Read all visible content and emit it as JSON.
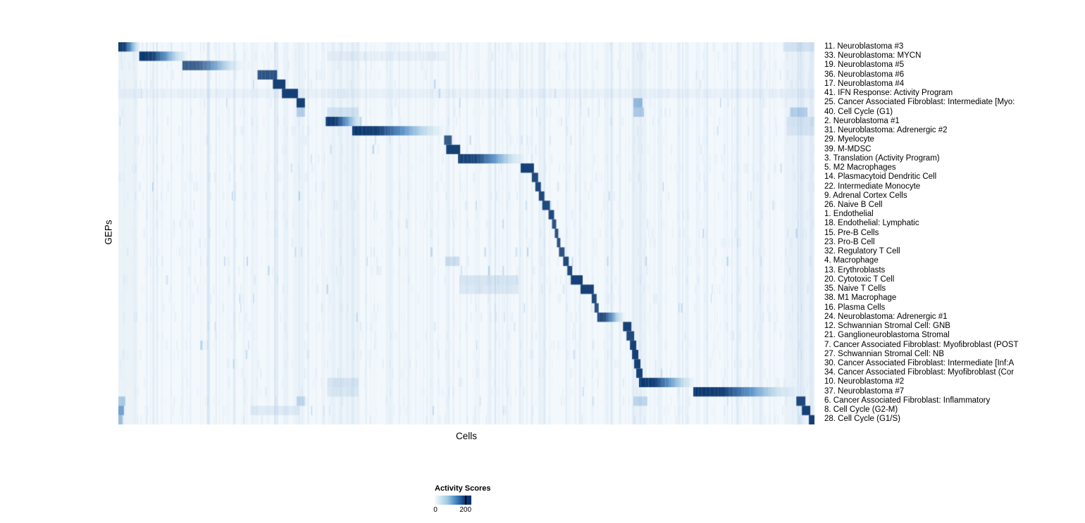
{
  "figure": {
    "background": "#ffffff"
  },
  "chart_data": {
    "type": "heatmap",
    "title": "",
    "xlabel": "Cells",
    "ylabel": "GEPs",
    "x_tick_labels_shown": false,
    "legend": {
      "title": "Activity Scores",
      "min_label": "0",
      "max_label": "200",
      "min": 0,
      "max": 200,
      "tick_fraction": 0.84,
      "position": "bottom"
    },
    "colors": {
      "page_background": "#ffffff",
      "cell_background": "#f3f8fc",
      "low": "#f7fbff",
      "midlight": "#9ecae1",
      "mid": "#3d7fbf",
      "high": "#09366f",
      "stripe": "#74a9d8",
      "text": "#000000"
    },
    "noise_seed": 42,
    "global_bands": [
      {
        "start": 0.74,
        "end": 0.753,
        "intensity": 0.06
      },
      {
        "start": 0.604,
        "end": 0.613,
        "intensity": 0.05
      },
      {
        "start": 0.47,
        "end": 0.476,
        "intensity": 0.04
      },
      {
        "start": 0.957,
        "end": 1.0,
        "intensity": 0.05
      },
      {
        "start": 0.0,
        "end": 0.028,
        "intensity": 0.04
      },
      {
        "start": 0.3,
        "end": 0.344,
        "intensity": 0.03
      },
      {
        "start": 0.256,
        "end": 0.268,
        "intensity": 0.03
      }
    ],
    "rows": [
      {
        "label": "11. Neuroblastoma #3",
        "block": {
          "start": 0.0,
          "end": 0.032,
          "style": "fade",
          "intensity": 1.0
        },
        "extras": [
          {
            "start": 0.955,
            "end": 1.0,
            "intensity": 0.12
          }
        ]
      },
      {
        "label": "33. Neuroblastoma: MYCN",
        "block": {
          "start": 0.03,
          "end": 0.1,
          "style": "fade",
          "intensity": 1.0
        },
        "extras": [
          {
            "start": 0.3,
            "end": 0.47,
            "intensity": 0.06
          }
        ]
      },
      {
        "label": "19. Neuroblastoma #5",
        "block": {
          "start": 0.092,
          "end": 0.18,
          "style": "fade",
          "intensity": 0.8
        },
        "extras": []
      },
      {
        "label": "36. Neuroblastoma #6",
        "block": {
          "start": 0.2,
          "end": 0.228,
          "style": "solid",
          "intensity": 0.85
        },
        "extras": []
      },
      {
        "label": "17. Neuroblastoma #4",
        "block": {
          "start": 0.222,
          "end": 0.24,
          "style": "solid",
          "intensity": 0.95
        },
        "extras": []
      },
      {
        "label": "41. IFN Response: Activity Program",
        "block": {
          "start": 0.235,
          "end": 0.258,
          "style": "solid",
          "intensity": 0.95
        },
        "extras": [
          {
            "start": 0.0,
            "end": 1.0,
            "intensity": 0.05
          }
        ]
      },
      {
        "label": "25. Cancer Associated Fibroblast: Intermediate [Myo:",
        "block": {
          "start": 0.256,
          "end": 0.268,
          "style": "solid",
          "intensity": 0.95
        },
        "extras": [
          {
            "start": 0.74,
            "end": 0.753,
            "intensity": 0.5
          }
        ]
      },
      {
        "label": "40. Cell Cycle (G1)",
        "block": null,
        "extras": [
          {
            "start": 0.256,
            "end": 0.268,
            "intensity": 0.3
          },
          {
            "start": 0.3,
            "end": 0.345,
            "intensity": 0.15
          },
          {
            "start": 0.74,
            "end": 0.755,
            "intensity": 0.35
          },
          {
            "start": 0.965,
            "end": 0.99,
            "intensity": 0.3
          }
        ]
      },
      {
        "label": "2. Neuroblastoma #1",
        "block": {
          "start": 0.298,
          "end": 0.352,
          "style": "fade",
          "intensity": 1.0
        },
        "extras": [
          {
            "start": 0.96,
            "end": 1.0,
            "intensity": 0.12
          }
        ]
      },
      {
        "label": "31. Neuroblastoma: Adrenergic #2",
        "block": {
          "start": 0.336,
          "end": 0.47,
          "style": "fade",
          "intensity": 1.0
        },
        "extras": [
          {
            "start": 0.96,
            "end": 1.0,
            "intensity": 0.1
          }
        ]
      },
      {
        "label": "29. Myelocyte",
        "block": {
          "start": 0.468,
          "end": 0.479,
          "style": "solid",
          "intensity": 0.8
        },
        "extras": []
      },
      {
        "label": "39. M-MDSC",
        "block": {
          "start": 0.471,
          "end": 0.491,
          "style": "solid",
          "intensity": 0.95
        },
        "extras": []
      },
      {
        "label": "3. Translation (Activity Program)",
        "block": {
          "start": 0.488,
          "end": 0.585,
          "style": "fade",
          "intensity": 0.95
        },
        "extras": []
      },
      {
        "label": "5. M2 Macrophages",
        "block": {
          "start": 0.578,
          "end": 0.597,
          "style": "solid",
          "intensity": 0.95
        },
        "extras": []
      },
      {
        "label": "14. Plasmacytoid Dendritic Cell",
        "block": {
          "start": 0.594,
          "end": 0.603,
          "style": "solid",
          "intensity": 0.9
        },
        "extras": []
      },
      {
        "label": "22. Intermediate Monocyte",
        "block": {
          "start": 0.599,
          "end": 0.607,
          "style": "solid",
          "intensity": 0.9
        },
        "extras": []
      },
      {
        "label": "9. Adrenal Cortex Cells",
        "block": {
          "start": 0.604,
          "end": 0.612,
          "style": "solid",
          "intensity": 0.9
        },
        "extras": []
      },
      {
        "label": "26. Naive B Cell",
        "block": {
          "start": 0.609,
          "end": 0.62,
          "style": "solid",
          "intensity": 0.9
        },
        "extras": []
      },
      {
        "label": "1. Endothelial",
        "block": {
          "start": 0.618,
          "end": 0.626,
          "style": "solid",
          "intensity": 0.9
        },
        "extras": []
      },
      {
        "label": "18. Endothelial: Lymphatic",
        "block": {
          "start": 0.623,
          "end": 0.629,
          "style": "solid",
          "intensity": 0.85
        },
        "extras": []
      },
      {
        "label": "15. Pre-B Cells",
        "block": {
          "start": 0.627,
          "end": 0.632,
          "style": "solid",
          "intensity": 0.85
        },
        "extras": []
      },
      {
        "label": "23. Pro-B Cell",
        "block": {
          "start": 0.63,
          "end": 0.635,
          "style": "solid",
          "intensity": 0.85
        },
        "extras": []
      },
      {
        "label": "32. Regulatory T Cell",
        "block": {
          "start": 0.633,
          "end": 0.641,
          "style": "solid",
          "intensity": 0.85
        },
        "extras": []
      },
      {
        "label": "4. Macrophage",
        "block": {
          "start": 0.639,
          "end": 0.647,
          "style": "solid",
          "intensity": 0.9
        },
        "extras": [
          {
            "start": 0.47,
            "end": 0.49,
            "intensity": 0.2
          }
        ]
      },
      {
        "label": "13. Erythroblasts",
        "block": {
          "start": 0.645,
          "end": 0.652,
          "style": "solid",
          "intensity": 0.9
        },
        "extras": []
      },
      {
        "label": "20. Cytotoxic T Cell",
        "block": {
          "start": 0.65,
          "end": 0.667,
          "style": "solid",
          "intensity": 0.95
        },
        "extras": [
          {
            "start": 0.49,
            "end": 0.575,
            "intensity": 0.15
          }
        ]
      },
      {
        "label": "35. Naive T Cells",
        "block": {
          "start": 0.664,
          "end": 0.683,
          "style": "solid",
          "intensity": 0.95
        },
        "extras": [
          {
            "start": 0.49,
            "end": 0.575,
            "intensity": 0.12
          }
        ]
      },
      {
        "label": "38. M1 Macrophage",
        "block": {
          "start": 0.68,
          "end": 0.687,
          "style": "solid",
          "intensity": 0.9
        },
        "extras": []
      },
      {
        "label": "16. Plasma Cells",
        "block": {
          "start": 0.684,
          "end": 0.69,
          "style": "solid",
          "intensity": 0.85
        },
        "extras": []
      },
      {
        "label": "24. Neuroblastoma: Adrenergic #1",
        "block": {
          "start": 0.688,
          "end": 0.728,
          "style": "fade",
          "intensity": 0.9
        },
        "extras": []
      },
      {
        "label": "12. Schwannian Stromal Cell: GNB",
        "block": {
          "start": 0.725,
          "end": 0.737,
          "style": "solid",
          "intensity": 0.95
        },
        "extras": []
      },
      {
        "label": "21. Ganglioneuroblastoma Stromal",
        "block": {
          "start": 0.73,
          "end": 0.741,
          "style": "solid",
          "intensity": 0.9
        },
        "extras": []
      },
      {
        "label": "7. Cancer Associated Fibroblast: Myofibroblast (POST",
        "block": {
          "start": 0.735,
          "end": 0.744,
          "style": "solid",
          "intensity": 0.95
        },
        "extras": []
      },
      {
        "label": "27. Schwannian Stromal Cell: NB",
        "block": {
          "start": 0.738,
          "end": 0.747,
          "style": "solid",
          "intensity": 0.95
        },
        "extras": []
      },
      {
        "label": "30. Cancer Associated Fibroblast: Intermediate [Inf:A",
        "block": {
          "start": 0.741,
          "end": 0.75,
          "style": "solid",
          "intensity": 0.95
        },
        "extras": []
      },
      {
        "label": "34. Cancer Associated Fibroblast: Myofibroblast (Cor",
        "block": {
          "start": 0.744,
          "end": 0.753,
          "style": "solid",
          "intensity": 0.95
        },
        "extras": []
      },
      {
        "label": "10. Neuroblastoma #2",
        "block": {
          "start": 0.748,
          "end": 0.829,
          "style": "fade",
          "intensity": 1.0
        },
        "extras": [
          {
            "start": 0.3,
            "end": 0.345,
            "intensity": 0.12
          }
        ]
      },
      {
        "label": "37. Neuroblastoma #7",
        "block": {
          "start": 0.826,
          "end": 0.978,
          "style": "fade",
          "intensity": 1.0
        },
        "extras": [
          {
            "start": 0.3,
            "end": 0.345,
            "intensity": 0.1
          }
        ]
      },
      {
        "label": "6. Cancer Associated Fibroblast: Inflammatory",
        "block": {
          "start": 0.974,
          "end": 0.987,
          "style": "solid",
          "intensity": 0.9
        },
        "extras": [
          {
            "start": 0.0,
            "end": 0.01,
            "intensity": 0.35
          },
          {
            "start": 0.256,
            "end": 0.268,
            "intensity": 0.25
          },
          {
            "start": 0.74,
            "end": 0.76,
            "intensity": 0.25
          }
        ]
      },
      {
        "label": "8. Cell Cycle (G2-M)",
        "block": {
          "start": 0.982,
          "end": 0.994,
          "style": "solid",
          "intensity": 0.95
        },
        "extras": [
          {
            "start": 0.0,
            "end": 0.008,
            "intensity": 0.7
          },
          {
            "start": 0.19,
            "end": 0.26,
            "intensity": 0.1
          }
        ]
      },
      {
        "label": "28. Cell Cycle (G1/S)",
        "block": {
          "start": 0.992,
          "end": 1.0,
          "style": "solid",
          "intensity": 0.95
        },
        "extras": [
          {
            "start": 0.0,
            "end": 0.006,
            "intensity": 0.45
          }
        ]
      }
    ]
  }
}
